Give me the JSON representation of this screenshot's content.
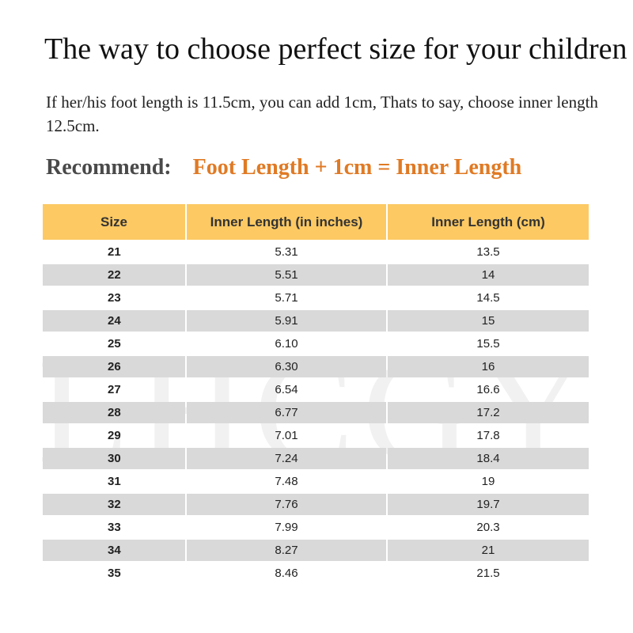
{
  "title": "The way to choose perfect size for your children",
  "note": "If her/his foot length is 11.5cm, you can add 1cm, Thats to say, choose inner length 12.5cm.",
  "recommend": {
    "label": "Recommend:",
    "formula": "Foot Length + 1cm = Inner Length"
  },
  "watermark": "LHCGY",
  "colors": {
    "header_bg": "#fcc963",
    "accent_orange": "#e07a24",
    "alt_row_bg": "#d9d9d9",
    "recommend_label": "#4a4a4a"
  },
  "table": {
    "headers": [
      "Size",
      "Inner Length (in inches)",
      "Inner Length (cm)"
    ],
    "rows": [
      [
        "21",
        "5.31",
        "13.5"
      ],
      [
        "22",
        "5.51",
        "14"
      ],
      [
        "23",
        "5.71",
        "14.5"
      ],
      [
        "24",
        "5.91",
        "15"
      ],
      [
        "25",
        "6.10",
        "15.5"
      ],
      [
        "26",
        "6.30",
        "16"
      ],
      [
        "27",
        "6.54",
        "16.6"
      ],
      [
        "28",
        "6.77",
        "17.2"
      ],
      [
        "29",
        "7.01",
        "17.8"
      ],
      [
        "30",
        "7.24",
        "18.4"
      ],
      [
        "31",
        "7.48",
        "19"
      ],
      [
        "32",
        "7.76",
        "19.7"
      ],
      [
        "33",
        "7.99",
        "20.3"
      ],
      [
        "34",
        "8.27",
        "21"
      ],
      [
        "35",
        "8.46",
        "21.5"
      ]
    ]
  }
}
